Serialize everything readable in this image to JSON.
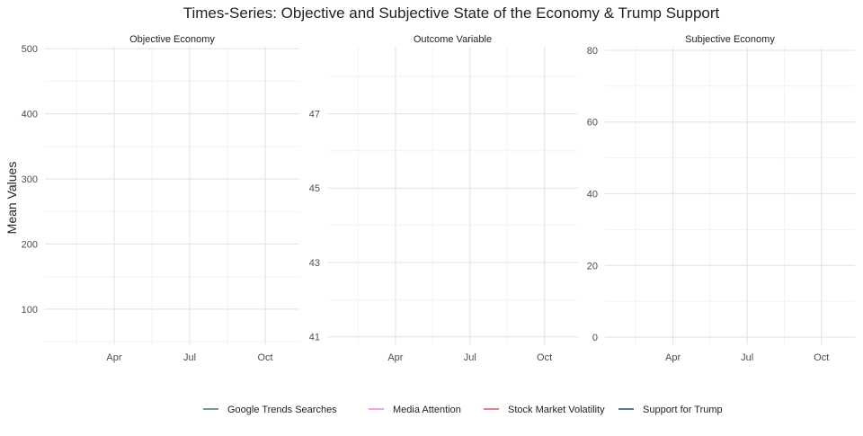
{
  "chart_data": {
    "title": "Times-Series: Objective and Subjective State of the Economy & Trump Support",
    "ylabel": "Mean Values",
    "legend_position": "bottom",
    "grid": true,
    "legend": [
      {
        "name": "Google Trends Searches",
        "color": "#2E8B57"
      },
      {
        "name": "Media Attention",
        "color": "#EE82EE"
      },
      {
        "name": "Stock Market Volatility",
        "color": "#CD5C5C"
      },
      {
        "name": "Support for Trump",
        "color": "#1F4E79"
      }
    ],
    "panels": [
      {
        "title": "Objective Economy",
        "type": "line",
        "x_ticks": [
          "Apr",
          "Jul",
          "Oct"
        ],
        "ylim": [
          46,
          503
        ],
        "y_ticks": [
          100,
          200,
          300,
          400,
          500
        ],
        "series": []
      },
      {
        "title": "Outcome Variable",
        "type": "line",
        "x_ticks": [
          "Apr",
          "Jul",
          "Oct"
        ],
        "ylim": [
          40.8,
          48.8
        ],
        "y_ticks": [
          41,
          43,
          45,
          47
        ],
        "series": []
      },
      {
        "title": "Subjective Economy",
        "type": "line",
        "x_ticks": [
          "Apr",
          "Jul",
          "Oct"
        ],
        "ylim": [
          -2,
          81
        ],
        "y_ticks": [
          0,
          20,
          40,
          60,
          80
        ],
        "series": []
      }
    ]
  }
}
